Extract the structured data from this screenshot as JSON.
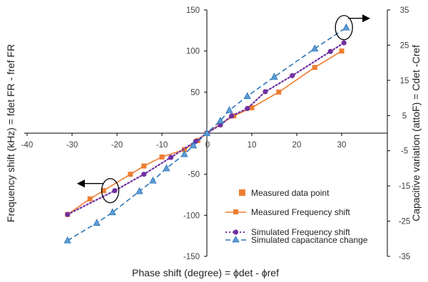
{
  "chart_data": {
    "type": "scatter",
    "xlabel": "Phase shift (degree) = ϕdet - ϕref",
    "ylabel": "Frequency shift (kHz) = fdet FR - fref FR",
    "y2label": "Capacitive variation (attoF) = Cdet -Cref",
    "xlim": [
      -40,
      40
    ],
    "ylim": [
      -150,
      150
    ],
    "y2lim": [
      -35,
      35
    ],
    "xticks": [
      -40,
      -30,
      -20,
      -10,
      0,
      10,
      20,
      30
    ],
    "yticks": [
      -150,
      -100,
      -50,
      0,
      50,
      100,
      150
    ],
    "y2ticks": [
      -35,
      -25,
      -15,
      -5,
      5,
      15,
      25,
      35
    ],
    "grid": false,
    "legend_position": "bottom-right",
    "legend": [
      "Measured data point",
      "Measured Frequency shift",
      "Simulated Frequency shift",
      "Simulated capacitance change"
    ],
    "series": [
      {
        "name": "Measured Frequency shift",
        "axis": "left",
        "style": "solid-square",
        "color": "#ED7D31",
        "x": [
          -31,
          -26,
          -23,
          -17,
          -14,
          -10,
          -5,
          -2,
          0,
          3,
          6,
          10,
          16,
          24,
          30
        ],
        "y": [
          -99,
          -80,
          -70,
          -50,
          -40,
          -29,
          -20,
          -9,
          0,
          11,
          21,
          31,
          50,
          80,
          100
        ]
      },
      {
        "name": "Simulated Frequency shift",
        "axis": "left",
        "style": "dotted-circle",
        "color": "#7030A0",
        "x": [
          -31,
          -20.5,
          -14,
          -8,
          -2.5,
          0,
          3,
          5.5,
          9,
          13,
          19,
          27.5,
          30.5
        ],
        "y": [
          -99,
          -70,
          -50,
          -29.5,
          -10,
          0,
          10,
          21,
          30,
          50.5,
          70,
          99.5,
          110
        ]
      },
      {
        "name": "Simulated capacitance change",
        "axis": "right",
        "style": "dashed-triangle",
        "color": "#2E75B6",
        "x": [
          -31,
          -24.5,
          -21,
          -15,
          -12,
          -9,
          -5,
          -3,
          0,
          3,
          5,
          9,
          15,
          24,
          31
        ],
        "y": [
          -30.5,
          -25.5,
          -22.5,
          -16.5,
          -13.5,
          -10,
          -6,
          -3.5,
          0,
          3.5,
          6.5,
          10.5,
          16,
          24,
          30
        ]
      }
    ],
    "annotations": [
      {
        "type": "ellipse-arrow",
        "axis": "left",
        "x": -21.5,
        "y": -70,
        "arrow_direction": "left"
      },
      {
        "type": "ellipse-arrow",
        "axis": "right",
        "x": 30.5,
        "y": 30,
        "arrow_direction": "right"
      }
    ]
  }
}
